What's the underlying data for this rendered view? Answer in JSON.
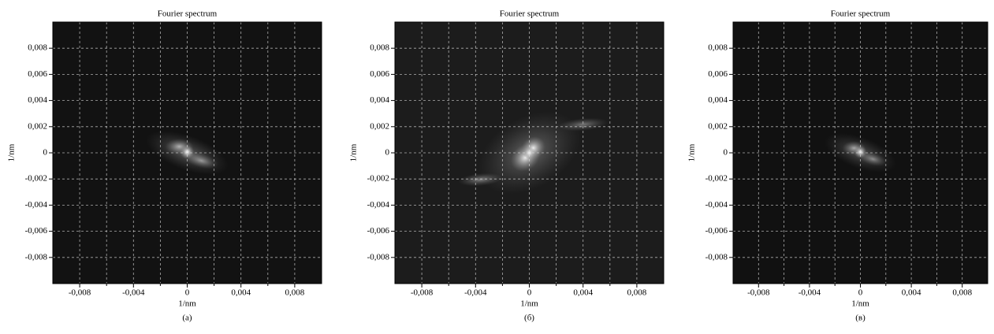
{
  "chart_data": [
    {
      "type": "heatmap",
      "title": "Fourier spectrum",
      "xlabel": "1/nm",
      "ylabel": "1/nm",
      "caption": "(а)",
      "xlim": [
        -0.01,
        0.01
      ],
      "ylim": [
        -0.01,
        0.01
      ],
      "xticks": [
        {
          "value": -0.008,
          "label": "-0,008"
        },
        {
          "value": -0.004,
          "label": "-0,004"
        },
        0,
        {
          "value": 0.004,
          "label": "0,004"
        },
        {
          "value": 0.008,
          "label": "0,008"
        }
      ],
      "xminorticks": [
        -0.006,
        -0.002,
        0.002,
        0.006
      ],
      "yticks": [
        {
          "value": 0.008,
          "label": "0,008"
        },
        {
          "value": 0.006,
          "label": "0,006"
        },
        {
          "value": 0.004,
          "label": "0,004"
        },
        {
          "value": 0.002,
          "label": "0,002"
        },
        0,
        {
          "value": -0.002,
          "label": "-0,002"
        },
        {
          "value": -0.004,
          "label": "-0,004"
        },
        {
          "value": -0.006,
          "label": "-0,006"
        },
        {
          "value": -0.008,
          "label": "-0,008"
        }
      ],
      "grid": true
    },
    {
      "type": "heatmap",
      "title": "Fourier spectrum",
      "xlabel": "1/nm",
      "ylabel": "1/nm",
      "caption": "(б)",
      "xlim": [
        -0.01,
        0.01
      ],
      "ylim": [
        -0.01,
        0.01
      ],
      "xticks": [
        {
          "value": -0.008,
          "label": "-0,008"
        },
        {
          "value": -0.004,
          "label": "-0,004"
        },
        0,
        {
          "value": 0.004,
          "label": "0,004"
        },
        {
          "value": 0.008,
          "label": "0,008"
        }
      ],
      "xminorticks": [
        -0.006,
        -0.002,
        0.002,
        0.006
      ],
      "yticks": [
        {
          "value": 0.008,
          "label": "0,008"
        },
        {
          "value": 0.006,
          "label": "0,006"
        },
        {
          "value": 0.004,
          "label": "0,004"
        },
        {
          "value": 0.002,
          "label": "0,002"
        },
        0,
        {
          "value": -0.002,
          "label": "-0,002"
        },
        {
          "value": -0.004,
          "label": "-0,004"
        },
        {
          "value": -0.006,
          "label": "-0,006"
        },
        {
          "value": -0.008,
          "label": "-0,008"
        }
      ],
      "grid": true
    },
    {
      "type": "heatmap",
      "title": "Fourier spectrum",
      "xlabel": "1/nm",
      "ylabel": "1/nm",
      "caption": "(в)",
      "xlim": [
        -0.01,
        0.01
      ],
      "ylim": [
        -0.01,
        0.01
      ],
      "xticks": [
        {
          "value": -0.008,
          "label": "-0,008"
        },
        {
          "value": -0.004,
          "label": "-0,004"
        },
        0,
        {
          "value": 0.004,
          "label": "0,004"
        },
        {
          "value": 0.008,
          "label": "0,008"
        }
      ],
      "xminorticks": [
        -0.006,
        -0.002,
        0.002,
        0.006
      ],
      "yticks": [
        {
          "value": 0.008,
          "label": "0,008"
        },
        {
          "value": 0.006,
          "label": "0,006"
        },
        {
          "value": 0.004,
          "label": "0,004"
        },
        {
          "value": 0.002,
          "label": "0,002"
        },
        0,
        {
          "value": -0.002,
          "label": "-0,002"
        },
        {
          "value": -0.004,
          "label": "-0,004"
        },
        {
          "value": -0.006,
          "label": "-0,006"
        },
        {
          "value": -0.008,
          "label": "-0,008"
        }
      ],
      "grid": true
    }
  ]
}
